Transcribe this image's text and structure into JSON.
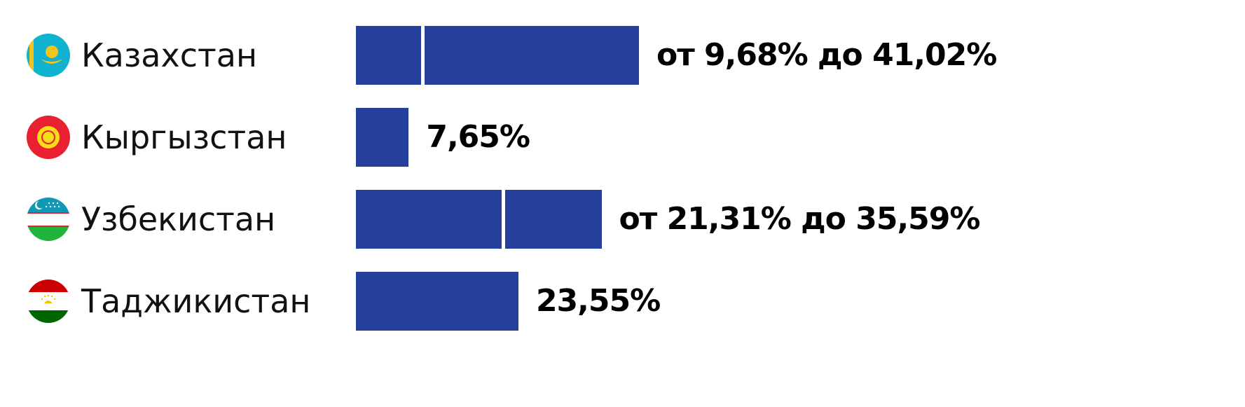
{
  "chart_data": {
    "type": "bar",
    "orientation": "horizontal",
    "bar_color": "#24409b",
    "xlim": [
      0,
      41.02
    ],
    "categories": [
      "Казахстан",
      "Кыргызстан",
      "Узбекистан",
      "Таджикистан"
    ],
    "flags": [
      "kazakhstan-flag-icon",
      "kyrgyzstan-flag-icon",
      "uzbekistan-flag-icon",
      "tajikistan-flag-icon"
    ],
    "rows": [
      {
        "country": "Казахстан",
        "min": 9.68,
        "max": 41.02,
        "label": "от 9,68% до 41,02%"
      },
      {
        "country": "Кыргызстан",
        "min": null,
        "max": 7.65,
        "label": "7,65%"
      },
      {
        "country": "Узбекистан",
        "min": 21.31,
        "max": 35.59,
        "label": "от 21,31% до 35,59%"
      },
      {
        "country": "Таджикистан",
        "min": null,
        "max": 23.55,
        "label": "23,55%"
      }
    ]
  }
}
